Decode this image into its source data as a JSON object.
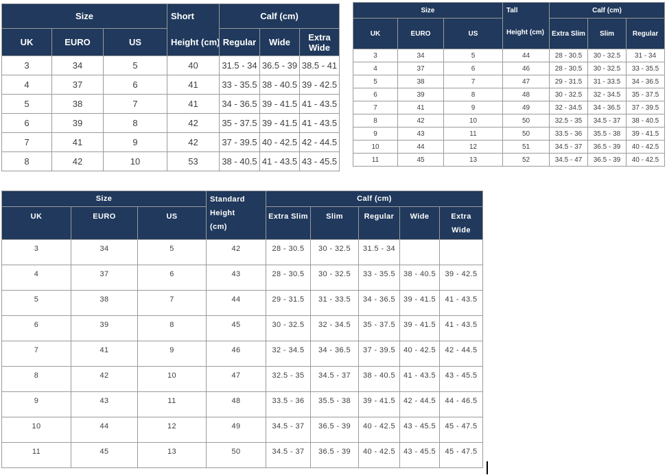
{
  "colors": {
    "header_bg": "#20395c",
    "header_text": "#ffffff",
    "border": "#9a9a9a",
    "data_text": "#3d3d3d",
    "background": "#ffffff"
  },
  "tables": [
    {
      "name": "short-boot-size-chart",
      "header": {
        "size": "Size",
        "height_type": "Short",
        "height_unit": "Height (cm)",
        "calf": "Calf (cm)",
        "size_cols": [
          "UK",
          "EURO",
          "US"
        ],
        "calf_cols": [
          "Regular",
          "Wide",
          "Extra Wide"
        ]
      },
      "rows": [
        [
          "3",
          "34",
          "5",
          "40",
          "31.5 - 34",
          "36.5 - 39",
          "38.5 - 41"
        ],
        [
          "4",
          "37",
          "6",
          "41",
          "33 - 35.5",
          "38 - 40.5",
          "39 - 42.5"
        ],
        [
          "5",
          "38",
          "7",
          "41",
          "34 - 36.5",
          "39 - 41.5",
          "41 - 43.5"
        ],
        [
          "6",
          "39",
          "8",
          "42",
          "35 - 37.5",
          "39 - 41.5",
          "41 - 43.5"
        ],
        [
          "7",
          "41",
          "9",
          "42",
          "37 - 39.5",
          "40 - 42.5",
          "42 - 44.5"
        ],
        [
          "8",
          "42",
          "10",
          "53",
          "38 - 40.5",
          "41 - 43.5",
          "43 - 45.5"
        ]
      ]
    },
    {
      "name": "tall-boot-size-chart",
      "header": {
        "size": "Size",
        "height_type": "Tall",
        "height_unit": "Height (cm)",
        "calf": "Calf (cm)",
        "size_cols": [
          "UK",
          "EURO",
          "US"
        ],
        "calf_cols": [
          "Extra Slim",
          "Slim",
          "Regular"
        ]
      },
      "rows": [
        [
          "3",
          "34",
          "5",
          "44",
          "28 - 30.5",
          "30 - 32.5",
          "31 - 34"
        ],
        [
          "4",
          "37",
          "6",
          "46",
          "28 - 30.5",
          "30 - 32.5",
          "33 - 35.5"
        ],
        [
          "5",
          "38",
          "7",
          "47",
          "29 - 31.5",
          "31 - 33.5",
          "34 - 36.5"
        ],
        [
          "6",
          "39",
          "8",
          "48",
          "30 - 32.5",
          "32 - 34.5",
          "35 - 37.5"
        ],
        [
          "7",
          "41",
          "9",
          "49",
          "32 - 34.5",
          "34 - 36.5",
          "37 - 39.5"
        ],
        [
          "8",
          "42",
          "10",
          "50",
          "32.5 - 35",
          "34.5 - 37",
          "38 - 40.5"
        ],
        [
          "9",
          "43",
          "11",
          "50",
          "33.5 - 36",
          "35.5 - 38",
          "39 - 41.5"
        ],
        [
          "10",
          "44",
          "12",
          "51",
          "34.5 - 37",
          "36.5 - 39",
          "40 - 42.5"
        ],
        [
          "11",
          "45",
          "13",
          "52",
          "34.5 - 47",
          "36.5 - 39",
          "40 - 42.5"
        ]
      ]
    },
    {
      "name": "standard-boot-size-chart",
      "header": {
        "size": "Size",
        "height_type": "Standard",
        "height_unit": "Height (cm)",
        "calf": "Calf (cm)",
        "size_cols": [
          "UK",
          "EURO",
          "US"
        ],
        "calf_cols": [
          "Extra Slim",
          "Slim",
          "Regular",
          "Wide",
          "Extra Wide"
        ]
      },
      "rows": [
        [
          "3",
          "34",
          "5",
          "42",
          "28 - 30.5",
          "30 - 32.5",
          "31.5 - 34",
          "",
          ""
        ],
        [
          "4",
          "37",
          "6",
          "43",
          "28 - 30.5",
          "30 - 32.5",
          "33 - 35.5",
          "38 - 40.5",
          "39 - 42.5"
        ],
        [
          "5",
          "38",
          "7",
          "44",
          "29 - 31.5",
          "31 - 33.5",
          "34 - 36.5",
          "39 - 41.5",
          "41 - 43.5"
        ],
        [
          "6",
          "39",
          "8",
          "45",
          "30 - 32.5",
          "32 - 34.5",
          "35 - 37.5",
          "39 - 41.5",
          "41 - 43.5"
        ],
        [
          "7",
          "41",
          "9",
          "46",
          "32 - 34.5",
          "34 - 36.5",
          "37 - 39.5",
          "40 - 42.5",
          "42 - 44.5"
        ],
        [
          "8",
          "42",
          "10",
          "47",
          "32.5 - 35",
          "34.5 - 37",
          "38 - 40.5",
          "41 - 43.5",
          "43 - 45.5"
        ],
        [
          "9",
          "43",
          "11",
          "48",
          "33.5 - 36",
          "35.5 - 38",
          "39 - 41.5",
          "42 - 44.5",
          "44 - 46.5"
        ],
        [
          "10",
          "44",
          "12",
          "49",
          "34.5 - 37",
          "36.5 - 39",
          "40 - 42.5",
          "43 - 45.5",
          "45 - 47.5"
        ],
        [
          "11",
          "45",
          "13",
          "50",
          "34.5 - 37",
          "36.5 - 39",
          "40 - 42.5",
          "43 - 45.5",
          "45 - 47.5"
        ]
      ]
    }
  ]
}
